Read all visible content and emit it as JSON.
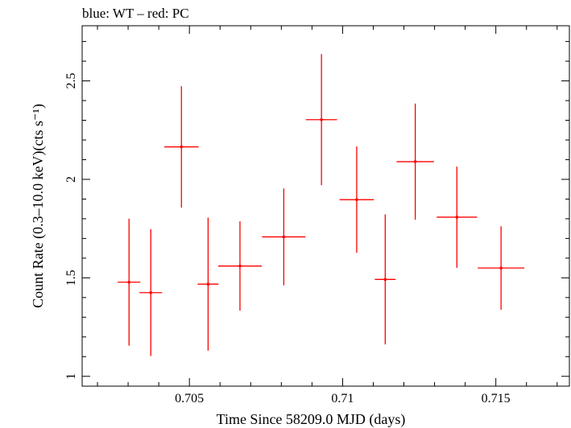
{
  "chart_data": {
    "type": "scatter",
    "title": "blue: WT – red: PC",
    "xlabel": "Time Since 58209.0 MJD (days)",
    "ylabel": "Count Rate (0.3–10.0 keV)(cts s⁻¹)",
    "xlim": [
      0.7015,
      0.7174
    ],
    "ylim": [
      0.95,
      2.78
    ],
    "xticks": [
      0.705,
      0.71,
      0.715
    ],
    "xtick_labels": [
      "0.705",
      "0.71",
      "0.715"
    ],
    "yticks": [
      1,
      1.5,
      2,
      2.5
    ],
    "ytick_labels": [
      "1",
      "1.5",
      "2",
      "2.5"
    ],
    "grid": false,
    "series": [
      {
        "name": "PC",
        "color": "#ff0000",
        "points": [
          {
            "x": 0.70303,
            "xerr": 0.00037,
            "y": 1.478,
            "yerr": 0.322
          },
          {
            "x": 0.70374,
            "xerr": 0.00037,
            "y": 1.425,
            "yerr": 0.322
          },
          {
            "x": 0.70474,
            "xerr": 0.00056,
            "y": 2.165,
            "yerr": 0.308
          },
          {
            "x": 0.70561,
            "xerr": 0.00034,
            "y": 1.468,
            "yerr": 0.338
          },
          {
            "x": 0.70665,
            "xerr": 0.00071,
            "y": 1.56,
            "yerr": 0.227
          },
          {
            "x": 0.70808,
            "xerr": 0.00071,
            "y": 1.708,
            "yerr": 0.246
          },
          {
            "x": 0.70931,
            "xerr": 0.00051,
            "y": 2.303,
            "yerr": 0.333
          },
          {
            "x": 0.71046,
            "xerr": 0.00056,
            "y": 1.897,
            "yerr": 0.27
          },
          {
            "x": 0.71139,
            "xerr": 0.00034,
            "y": 1.492,
            "yerr": 0.33
          },
          {
            "x": 0.71237,
            "xerr": 0.00061,
            "y": 2.09,
            "yerr": 0.295
          },
          {
            "x": 0.71373,
            "xerr": 0.00066,
            "y": 1.808,
            "yerr": 0.257
          },
          {
            "x": 0.71517,
            "xerr": 0.00076,
            "y": 1.55,
            "yerr": 0.212
          }
        ]
      }
    ]
  }
}
